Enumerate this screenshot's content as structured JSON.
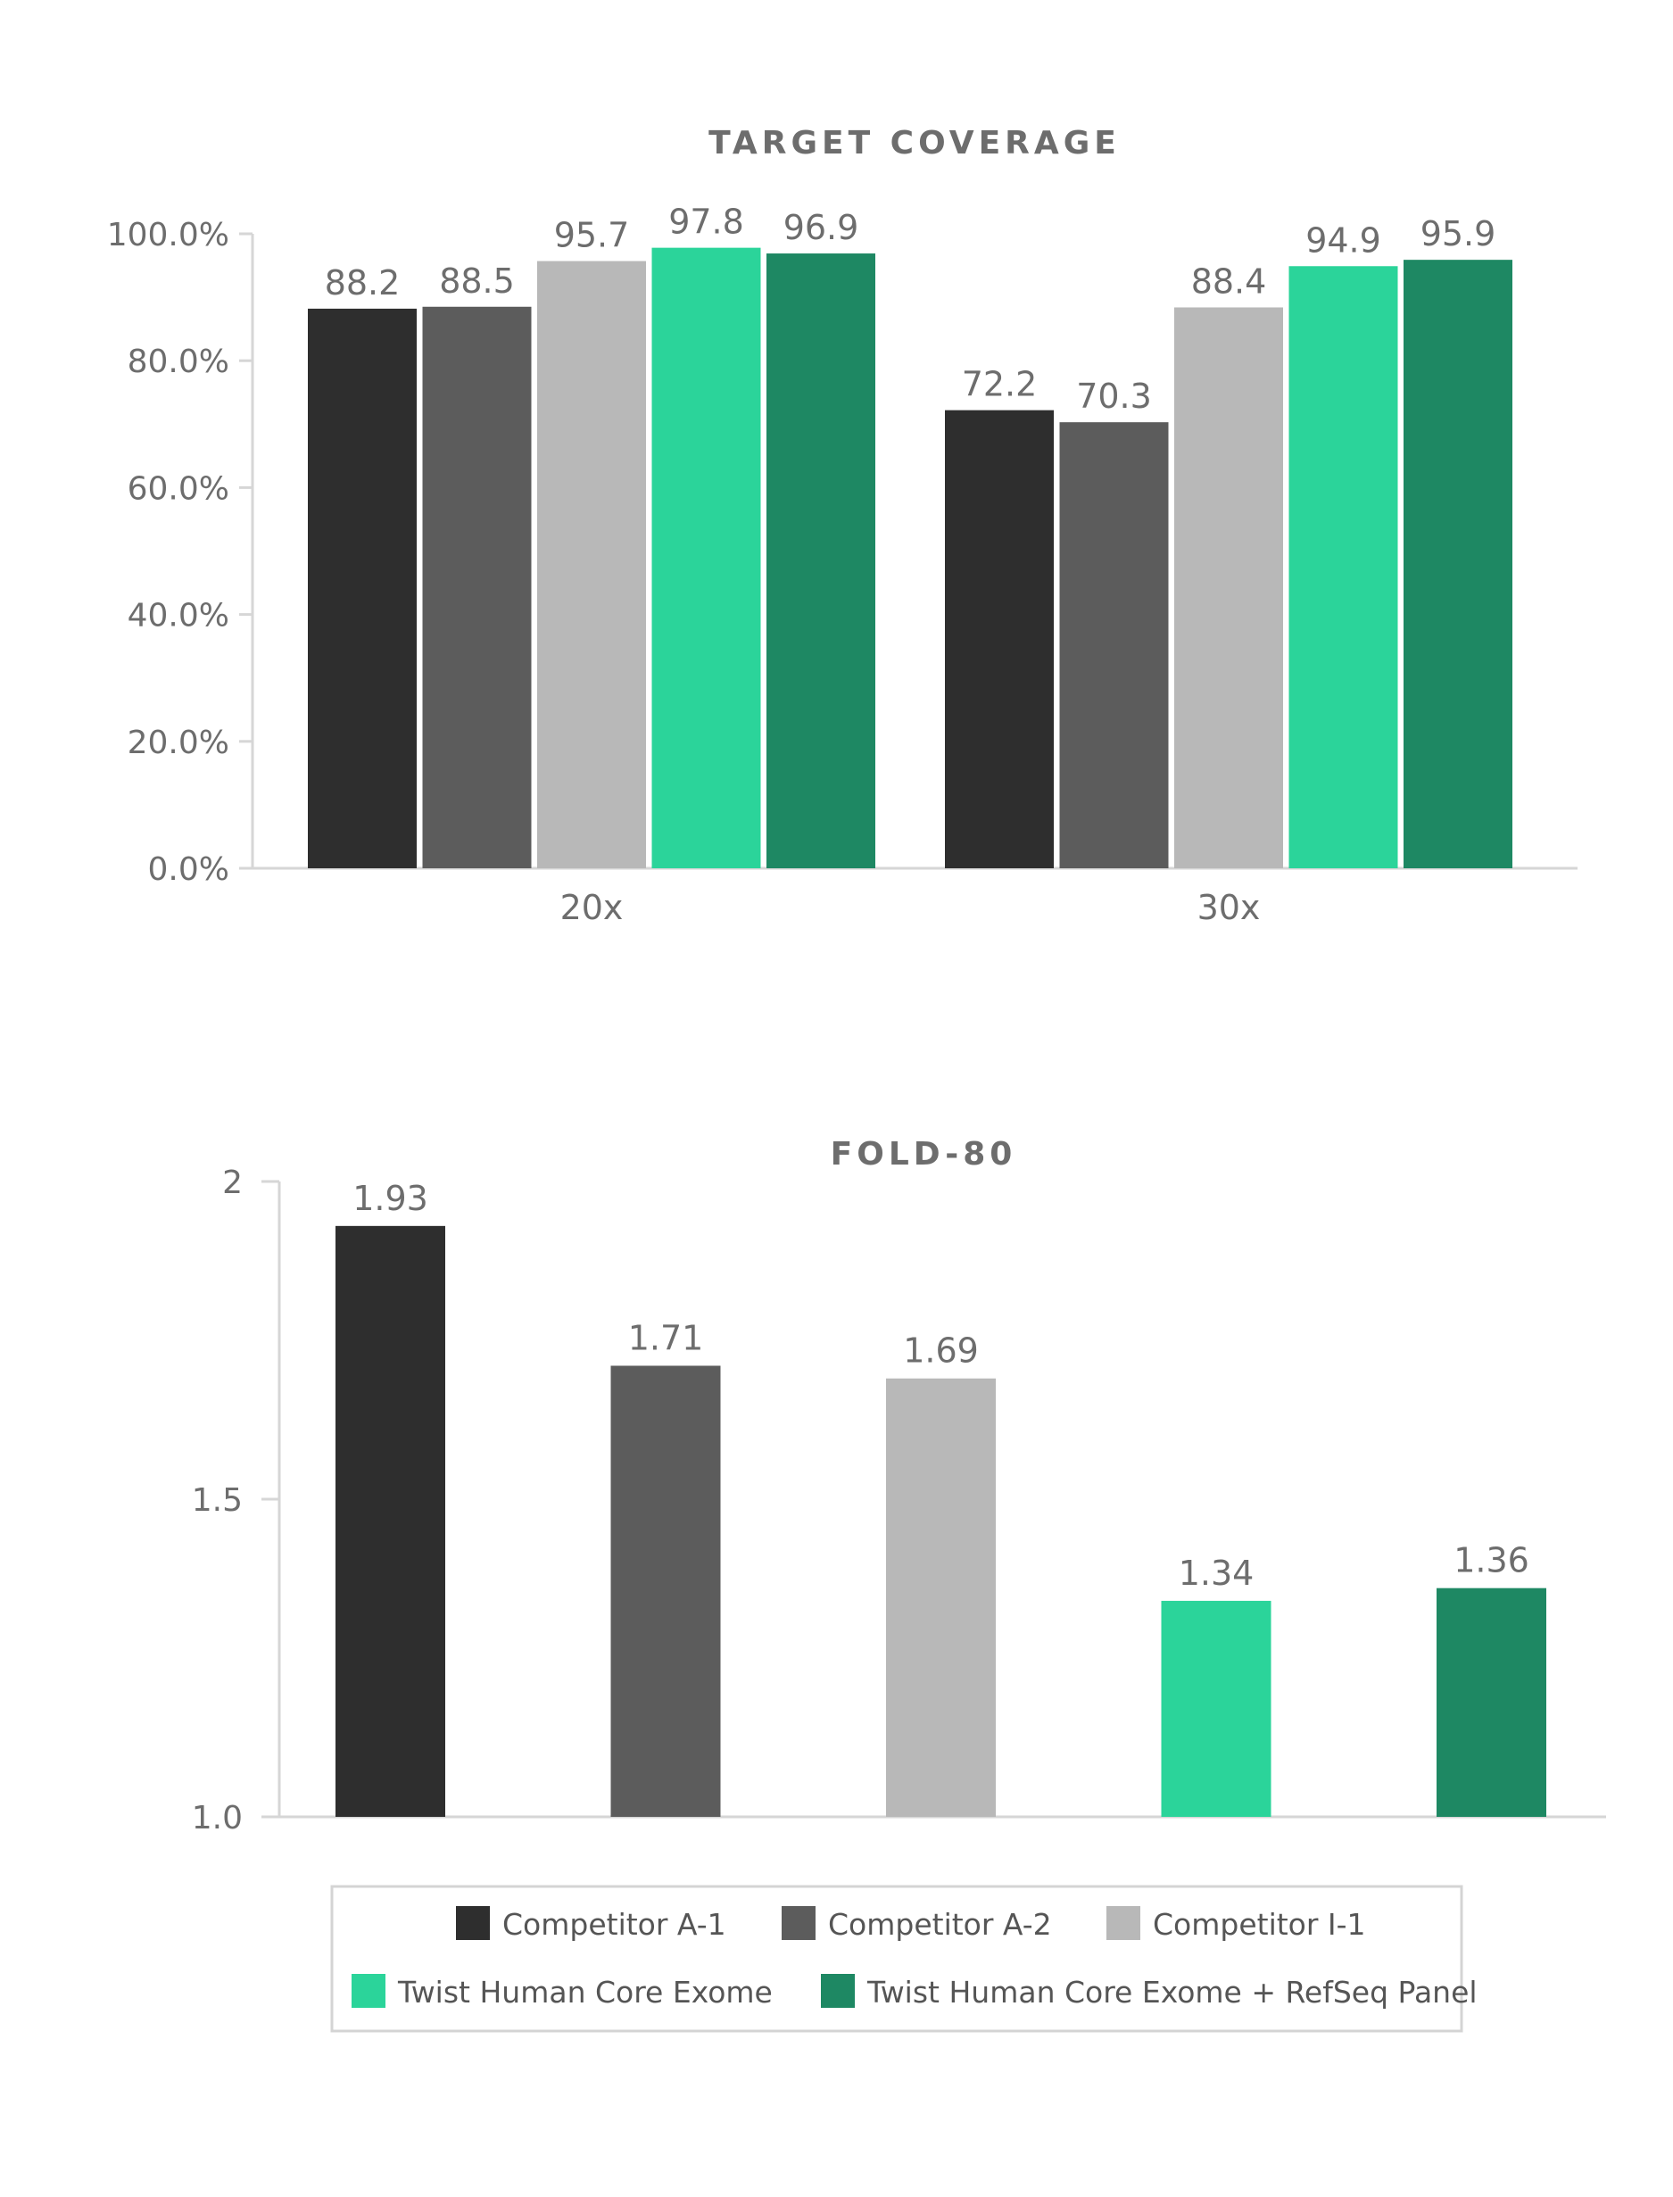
{
  "series_names": [
    "Competitor A-1",
    "Competitor A-2",
    "Competitor I-1",
    "Twist Human Core Exome",
    "Twist Human Core Exome + RefSeq Panel"
  ],
  "colors": [
    "#2e2e2e",
    "#5c5c5c",
    "#b8b8b8",
    "#2bd49a",
    "#1e8863"
  ],
  "chart_data": [
    {
      "type": "bar",
      "title": "TARGET COVERAGE",
      "categories": [
        "20x",
        "30x"
      ],
      "series": [
        {
          "name": "Competitor A-1",
          "values": [
            88.2,
            72.2
          ],
          "labels": [
            "88.2",
            "72.2"
          ]
        },
        {
          "name": "Competitor A-2",
          "values": [
            88.5,
            70.3
          ],
          "labels": [
            "88.5",
            "70.3"
          ]
        },
        {
          "name": "Competitor I-1",
          "values": [
            95.7,
            88.4
          ],
          "labels": [
            "95.7",
            "88.4"
          ]
        },
        {
          "name": "Twist Human Core Exome",
          "values": [
            97.8,
            94.9
          ],
          "labels": [
            "97.8",
            "94.9"
          ]
        },
        {
          "name": "Twist Human Core Exome + RefSeq Panel",
          "values": [
            96.9,
            95.9
          ],
          "labels": [
            "96.9",
            "95.9"
          ]
        }
      ],
      "ylim": [
        0,
        100
      ],
      "yticks": [
        0,
        20,
        40,
        60,
        80,
        100
      ],
      "ytick_labels": [
        "0.0%",
        "20.0%",
        "40.0%",
        "60.0%",
        "80.0%",
        "100.0%"
      ],
      "xlabel": "",
      "ylabel": ""
    },
    {
      "type": "bar",
      "title": "FOLD-80",
      "categories": [
        "Competitor A-1",
        "Competitor A-2",
        "Competitor I-1",
        "Twist Human Core Exome",
        "Twist Human Core Exome + RefSeq Panel"
      ],
      "values": [
        1.93,
        1.71,
        1.69,
        1.34,
        1.36
      ],
      "labels": [
        "1.93",
        "1.71",
        "1.69",
        "1.34",
        "1.36"
      ],
      "ylim": [
        1.0,
        2.0
      ],
      "yticks": [
        1.0,
        1.5,
        2.0
      ],
      "ytick_labels": [
        "1.0",
        "1.5",
        "2"
      ],
      "xlabel": "",
      "ylabel": ""
    }
  ],
  "legend": {
    "position": "bottom",
    "items": [
      "Competitor A-1",
      "Competitor A-2",
      "Competitor I-1",
      "Twist Human Core Exome",
      "Twist Human Core Exome + RefSeq Panel"
    ]
  }
}
